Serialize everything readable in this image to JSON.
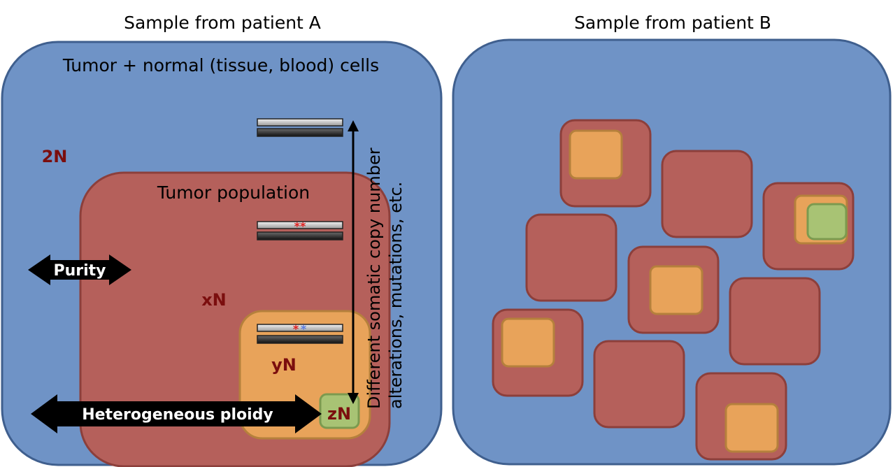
{
  "panel_a": {
    "title": "Sample from patient A",
    "label_outer": "Tumor + normal (tissue, blood) cells",
    "label_tumor": "Tumor population",
    "ploidy_normal": "2N",
    "ploidy_tumor": "xN",
    "ploidy_subclone": "yN",
    "ploidy_subsubclone": "zN",
    "arrow_purity": "Purity",
    "arrow_ploidy": "Heterogeneous ploidy",
    "vertical_label_line1": "Different somatic copy number",
    "vertical_label_line2": "alterations, mutations, etc.",
    "mutation_marks_1": "**",
    "mutation_marks_2a": "*",
    "mutation_marks_2b": "*"
  },
  "panel_b": {
    "title": "Sample from patient B"
  },
  "colors": {
    "normal": "#6f93c6",
    "normal_border": "#3f5f8e",
    "tumor": "#b5605b",
    "tumor_border": "#8c3f3b",
    "subclone": "#e8a35a",
    "subclone_border": "#b5803c",
    "subsubclone": "#a8c374",
    "subsubclone_border": "#7c9a4f",
    "ploidy_text": "#7b0e0e",
    "mut_red": "#e02020",
    "mut_blue": "#5a7be0"
  }
}
